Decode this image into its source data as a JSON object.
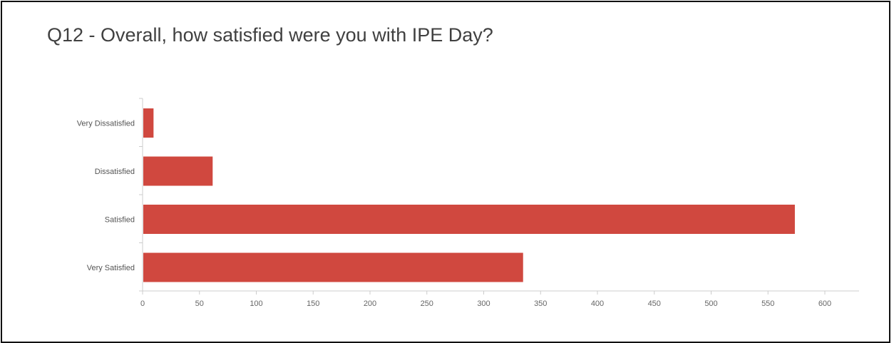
{
  "chart_data": {
    "type": "bar",
    "orientation": "horizontal",
    "title": "Q12 - Overall, how satisfied were you with IPE Day?",
    "categories": [
      "Very Dissatisfied",
      "Dissatisfied",
      "Satisfied",
      "Very Satisfied"
    ],
    "values": [
      9,
      61,
      573,
      334
    ],
    "xlim": [
      0,
      630
    ],
    "xticks": [
      "0",
      "50",
      "100",
      "150",
      "200",
      "250",
      "300",
      "350",
      "400",
      "450",
      "500",
      "550",
      "600"
    ],
    "xlabel": "",
    "ylabel": "",
    "grid": false,
    "legend": "none",
    "bar_color": "#d0483f",
    "axis_color": "#cccccc"
  }
}
